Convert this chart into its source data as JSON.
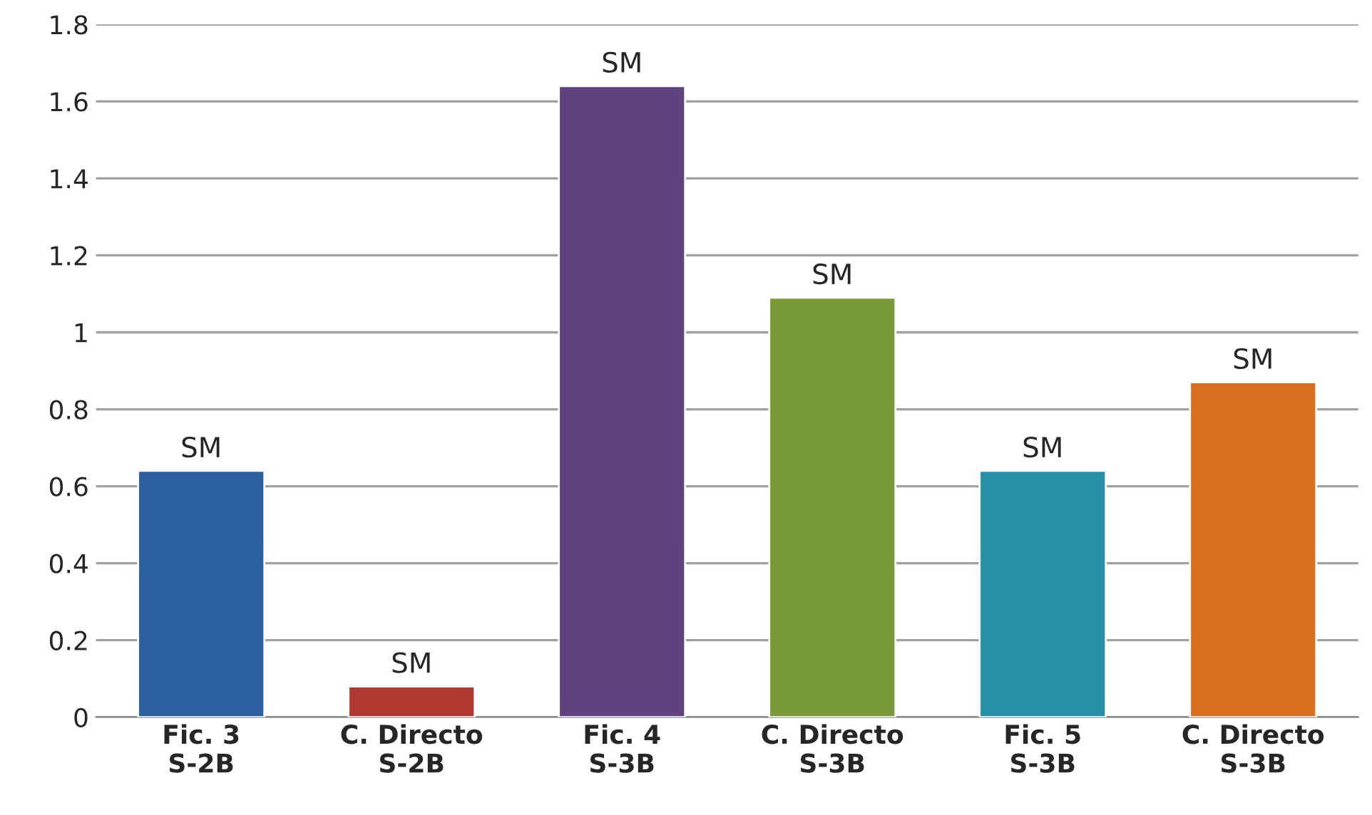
{
  "chart_data": {
    "type": "bar",
    "categories": [
      "Fic. 3\nS-2B",
      "C. Directo\nS-2B",
      "Fic. 4\nS-3B",
      "C. Directo\nS-3B",
      "Fic. 5\nS-3B",
      "C. Directo\nS-3B"
    ],
    "values": [
      0.64,
      0.08,
      1.64,
      1.09,
      0.64,
      0.87
    ],
    "colors": [
      "#2c5f9e",
      "#b03a30",
      "#60427f",
      "#7a9a3a",
      "#2590a8",
      "#d8701f"
    ],
    "value_labels": [
      "SM",
      "SM",
      "SM",
      "SM",
      "SM",
      "SM"
    ],
    "ylim": [
      0,
      1.8
    ],
    "yticks": [
      0,
      {
        "value": 0.2,
        "label": "0.2"
      },
      {
        "value": 0.4,
        "label": "0.4"
      },
      {
        "value": 0.6,
        "label": "0.6"
      },
      {
        "value": 0.8,
        "label": "0.8"
      },
      1,
      {
        "value": 1.2,
        "label": "1.2"
      },
      {
        "value": 1.4,
        "label": "1.4"
      },
      {
        "value": 1.6,
        "label": "1.6"
      },
      {
        "value": 1.8,
        "label": "1.8"
      }
    ],
    "grid": "y",
    "legend": false
  }
}
